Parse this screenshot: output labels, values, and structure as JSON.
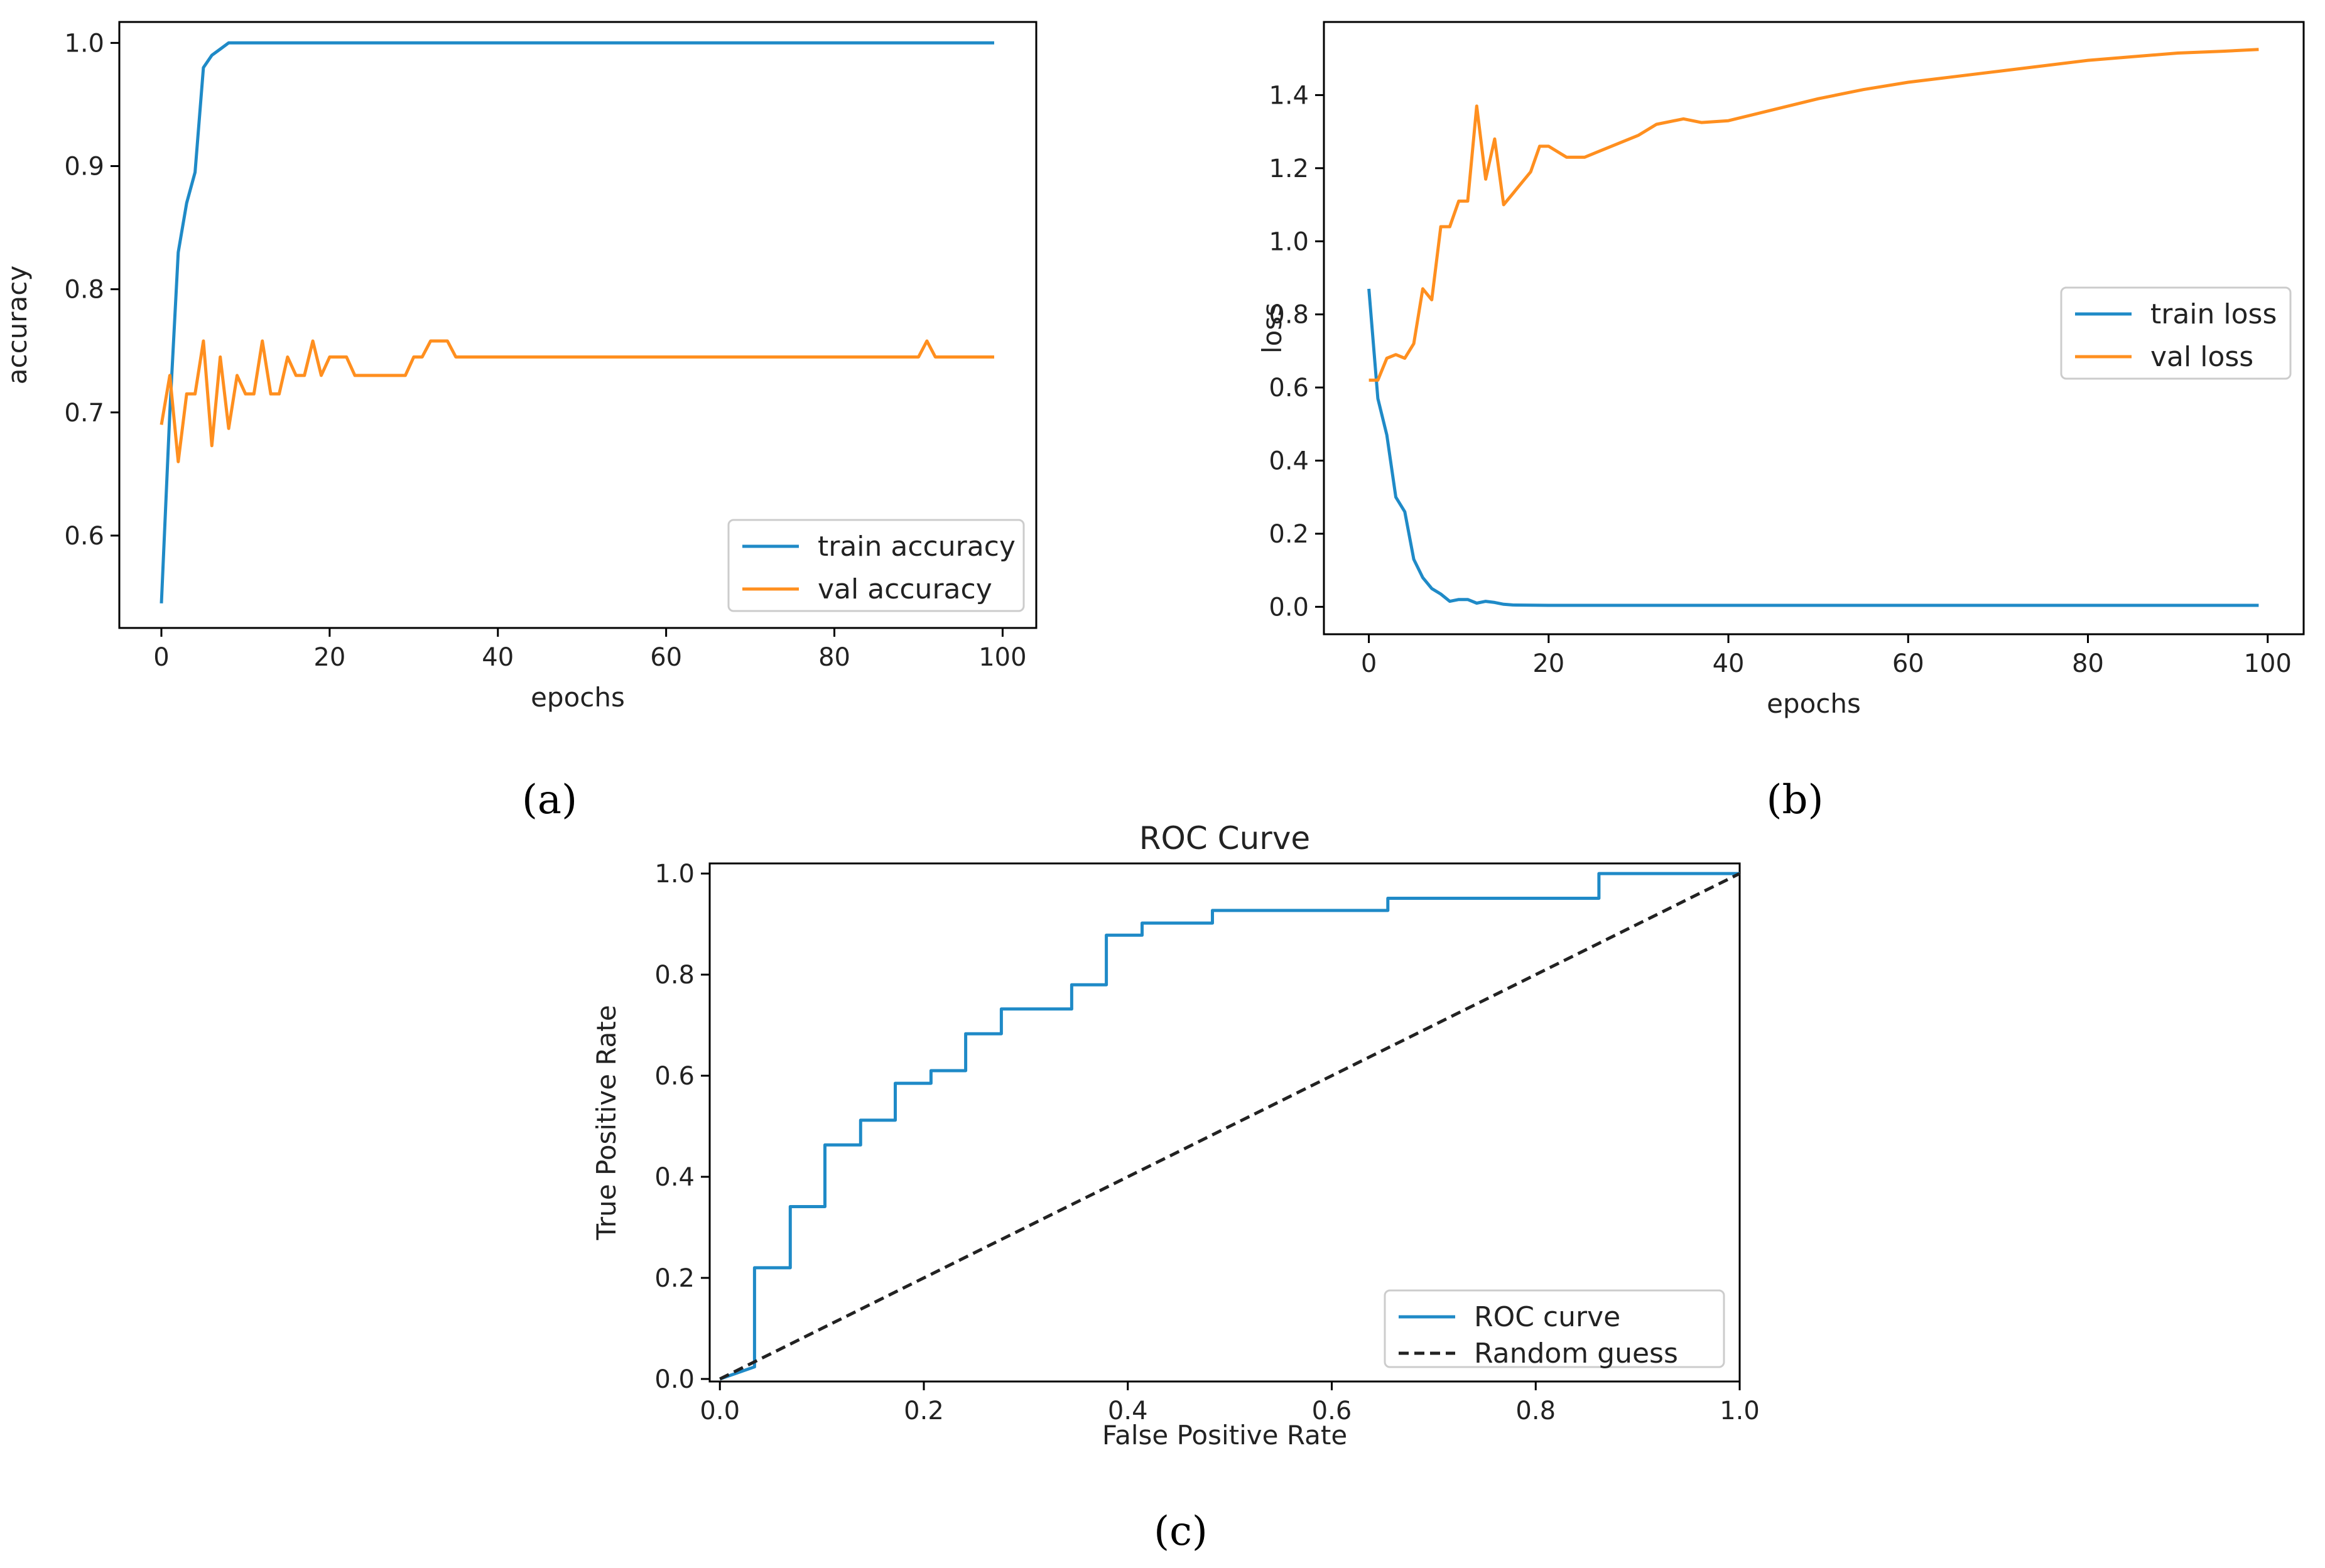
{
  "colors": {
    "train": "#1f8ac7",
    "val": "#ff8f1f",
    "roc": "#1f8ac7",
    "random": "#222222"
  },
  "chart_data": [
    {
      "id": "a",
      "type": "line",
      "panel_label": "(a)",
      "title": "",
      "xlabel": "epochs",
      "ylabel": "accuracy",
      "xlim": [
        -5,
        104
      ],
      "ylim": [
        0.525,
        1.017
      ],
      "xticks": [
        0,
        20,
        40,
        60,
        80,
        100
      ],
      "yticks": [
        0.6,
        0.7,
        0.8,
        0.9,
        1.0
      ],
      "xtick_labels": [
        "0",
        "20",
        "40",
        "60",
        "80",
        "100"
      ],
      "ytick_labels": [
        "0.6",
        "0.7",
        "0.8",
        "0.9",
        "1.0"
      ],
      "legend": "lower-right",
      "grid": false,
      "series": [
        {
          "name": "train accuracy",
          "color_key": "train",
          "points": [
            [
              0,
              0.545
            ],
            [
              1,
              0.7
            ],
            [
              2,
              0.83
            ],
            [
              3,
              0.87
            ],
            [
              4,
              0.895
            ],
            [
              5,
              0.98
            ],
            [
              6,
              0.99
            ],
            [
              7,
              0.995
            ],
            [
              8,
              1.0
            ],
            [
              99,
              1.0
            ]
          ]
        },
        {
          "name": "val accuracy",
          "color_key": "val",
          "points": [
            [
              0,
              0.69
            ],
            [
              1,
              0.73
            ],
            [
              2,
              0.66
            ],
            [
              3,
              0.715
            ],
            [
              4,
              0.715
            ],
            [
              5,
              0.758
            ],
            [
              6,
              0.673
            ],
            [
              7,
              0.745
            ],
            [
              8,
              0.687
            ],
            [
              9,
              0.73
            ],
            [
              10,
              0.715
            ],
            [
              11,
              0.715
            ],
            [
              12,
              0.758
            ],
            [
              13,
              0.715
            ],
            [
              14,
              0.715
            ],
            [
              15,
              0.745
            ],
            [
              16,
              0.73
            ],
            [
              17,
              0.73
            ],
            [
              18,
              0.758
            ],
            [
              19,
              0.73
            ],
            [
              20,
              0.745
            ],
            [
              21,
              0.745
            ],
            [
              22,
              0.745
            ],
            [
              23,
              0.73
            ],
            [
              24,
              0.73
            ],
            [
              25,
              0.73
            ],
            [
              26,
              0.73
            ],
            [
              27,
              0.73
            ],
            [
              28,
              0.73
            ],
            [
              29,
              0.73
            ],
            [
              30,
              0.745
            ],
            [
              31,
              0.745
            ],
            [
              32,
              0.758
            ],
            [
              33,
              0.758
            ],
            [
              34,
              0.758
            ],
            [
              35,
              0.745
            ],
            [
              36,
              0.745
            ],
            [
              90,
              0.745
            ],
            [
              91,
              0.758
            ],
            [
              92,
              0.745
            ],
            [
              99,
              0.745
            ]
          ]
        }
      ]
    },
    {
      "id": "b",
      "type": "line",
      "panel_label": "(b)",
      "title": "",
      "xlabel": "epochs",
      "ylabel": "loss",
      "xlim": [
        -5,
        104
      ],
      "ylim": [
        -0.075,
        1.6
      ],
      "xticks": [
        0,
        20,
        40,
        60,
        80,
        100
      ],
      "yticks": [
        0.0,
        0.2,
        0.4,
        0.6,
        0.8,
        1.0,
        1.2,
        1.4
      ],
      "xtick_labels": [
        "0",
        "20",
        "40",
        "60",
        "80",
        "100"
      ],
      "ytick_labels": [
        "0.0",
        "0.2",
        "0.4",
        "0.6",
        "0.8",
        "1.0",
        "1.2",
        "1.4"
      ],
      "legend": "center-right",
      "grid": false,
      "series": [
        {
          "name": "train loss",
          "color_key": "train",
          "points": [
            [
              0,
              0.87
            ],
            [
              1,
              0.57
            ],
            [
              2,
              0.47
            ],
            [
              3,
              0.3
            ],
            [
              4,
              0.26
            ],
            [
              5,
              0.13
            ],
            [
              6,
              0.08
            ],
            [
              7,
              0.05
            ],
            [
              8,
              0.035
            ],
            [
              9,
              0.015
            ],
            [
              10,
              0.02
            ],
            [
              11,
              0.02
            ],
            [
              12,
              0.01
            ],
            [
              13,
              0.015
            ],
            [
              14,
              0.012
            ],
            [
              15,
              0.007
            ],
            [
              16,
              0.005
            ],
            [
              20,
              0.004
            ],
            [
              40,
              0.004
            ],
            [
              60,
              0.004
            ],
            [
              80,
              0.004
            ],
            [
              99,
              0.004
            ]
          ]
        },
        {
          "name": "val loss",
          "color_key": "val",
          "points": [
            [
              0,
              0.62
            ],
            [
              1,
              0.62
            ],
            [
              2,
              0.68
            ],
            [
              3,
              0.69
            ],
            [
              4,
              0.68
            ],
            [
              5,
              0.72
            ],
            [
              6,
              0.87
            ],
            [
              7,
              0.84
            ],
            [
              8,
              1.04
            ],
            [
              9,
              1.04
            ],
            [
              10,
              1.11
            ],
            [
              11,
              1.11
            ],
            [
              12,
              1.37
            ],
            [
              13,
              1.17
            ],
            [
              14,
              1.28
            ],
            [
              15,
              1.1
            ],
            [
              16,
              1.13
            ],
            [
              17,
              1.16
            ],
            [
              18,
              1.19
            ],
            [
              19,
              1.26
            ],
            [
              20,
              1.26
            ],
            [
              22,
              1.23
            ],
            [
              24,
              1.23
            ],
            [
              26,
              1.25
            ],
            [
              28,
              1.27
            ],
            [
              30,
              1.29
            ],
            [
              32,
              1.32
            ],
            [
              35,
              1.335
            ],
            [
              37,
              1.325
            ],
            [
              40,
              1.33
            ],
            [
              45,
              1.36
            ],
            [
              50,
              1.39
            ],
            [
              55,
              1.415
            ],
            [
              60,
              1.435
            ],
            [
              65,
              1.45
            ],
            [
              70,
              1.465
            ],
            [
              75,
              1.48
            ],
            [
              80,
              1.495
            ],
            [
              85,
              1.505
            ],
            [
              90,
              1.515
            ],
            [
              95,
              1.52
            ],
            [
              99,
              1.525
            ]
          ]
        }
      ]
    },
    {
      "id": "c",
      "type": "line",
      "panel_label": "(c)",
      "title": "ROC Curve",
      "xlabel": "False Positive Rate",
      "ylabel": "True Positive Rate",
      "xlim": [
        -0.01,
        1.0
      ],
      "ylim": [
        -0.005,
        1.02
      ],
      "xticks": [
        0.0,
        0.2,
        0.4,
        0.6,
        0.8,
        1.0
      ],
      "yticks": [
        0.0,
        0.2,
        0.4,
        0.6,
        0.8,
        1.0
      ],
      "xtick_labels": [
        "0.0",
        "0.2",
        "0.4",
        "0.6",
        "0.8",
        "1.0"
      ],
      "ytick_labels": [
        "0.0",
        "0.2",
        "0.4",
        "0.6",
        "0.8",
        "1.0"
      ],
      "legend": "lower-right",
      "grid": false,
      "series": [
        {
          "name": "ROC curve",
          "color_key": "roc",
          "dashed": false,
          "points": [
            [
              0,
              0
            ],
            [
              0.034,
              0.024
            ],
            [
              0.034,
              0.22
            ],
            [
              0.069,
              0.22
            ],
            [
              0.069,
              0.341
            ],
            [
              0.103,
              0.341
            ],
            [
              0.103,
              0.463
            ],
            [
              0.138,
              0.463
            ],
            [
              0.138,
              0.512
            ],
            [
              0.172,
              0.512
            ],
            [
              0.172,
              0.585
            ],
            [
              0.207,
              0.585
            ],
            [
              0.207,
              0.61
            ],
            [
              0.241,
              0.61
            ],
            [
              0.241,
              0.683
            ],
            [
              0.276,
              0.683
            ],
            [
              0.276,
              0.732
            ],
            [
              0.345,
              0.732
            ],
            [
              0.345,
              0.78
            ],
            [
              0.379,
              0.78
            ],
            [
              0.379,
              0.878
            ],
            [
              0.414,
              0.878
            ],
            [
              0.414,
              0.902
            ],
            [
              0.483,
              0.902
            ],
            [
              0.483,
              0.927
            ],
            [
              0.655,
              0.927
            ],
            [
              0.655,
              0.951
            ],
            [
              0.862,
              0.951
            ],
            [
              0.862,
              1.0
            ],
            [
              1.0,
              1.0
            ]
          ]
        },
        {
          "name": "Random guess",
          "color_key": "random",
          "dashed": true,
          "points": [
            [
              0,
              0
            ],
            [
              1,
              1
            ]
          ]
        }
      ]
    }
  ]
}
